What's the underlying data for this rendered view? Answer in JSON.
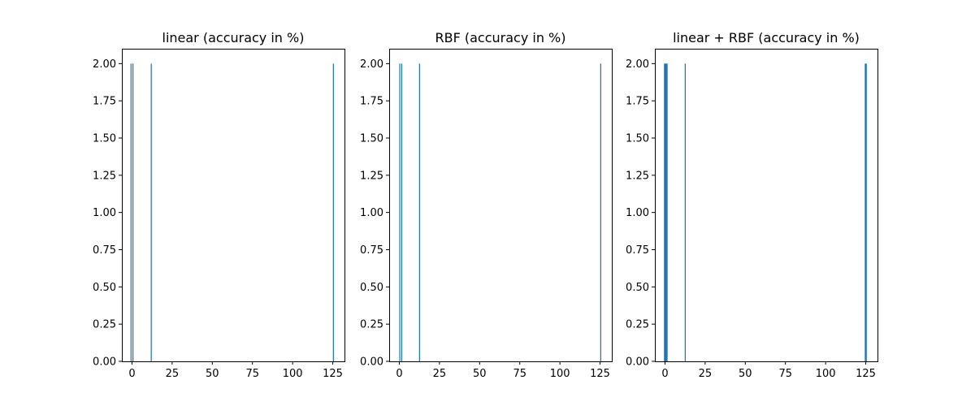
{
  "figure": {
    "background": "#ffffff",
    "bar_color": "#1f77b4"
  },
  "chart_data": [
    {
      "type": "bar",
      "title": "linear (accuracy in %)",
      "xlabel": "",
      "ylabel": "",
      "xlim": [
        -6.3,
        132.3
      ],
      "ylim": [
        0,
        2.1
      ],
      "x_ticks": [
        0,
        25,
        50,
        75,
        100,
        125
      ],
      "y_ticks": [
        "0.00",
        "0.25",
        "0.50",
        "0.75",
        "1.00",
        "1.25",
        "1.50",
        "1.75",
        "2.00"
      ],
      "grid": false,
      "bars": [
        {
          "x": -0.6,
          "width": 0.63,
          "value": 2
        },
        {
          "x": 0.6,
          "width": 0.63,
          "value": 2
        },
        {
          "x": 12.0,
          "width": 0.63,
          "value": 2
        },
        {
          "x": 125.4,
          "width": 0.63,
          "value": 2
        }
      ]
    },
    {
      "type": "bar",
      "title": "RBF (accuracy in %)",
      "xlabel": "",
      "ylabel": "",
      "xlim": [
        -6.3,
        132.3
      ],
      "ylim": [
        0,
        2.1
      ],
      "x_ticks": [
        0,
        25,
        50,
        75,
        100,
        125
      ],
      "y_ticks": [
        "0.00",
        "0.25",
        "0.50",
        "0.75",
        "1.00",
        "1.25",
        "1.50",
        "1.75",
        "2.00"
      ],
      "grid": false,
      "bars": [
        {
          "x": 0.3,
          "width": 0.63,
          "value": 2
        },
        {
          "x": 1.5,
          "width": 0.63,
          "value": 2
        },
        {
          "x": 12.6,
          "width": 0.63,
          "value": 2
        },
        {
          "x": 125.4,
          "width": 0.63,
          "value": 2
        }
      ]
    },
    {
      "type": "bar",
      "title": "linear + RBF (accuracy in %)",
      "xlabel": "",
      "ylabel": "",
      "xlim": [
        -6.3,
        132.3
      ],
      "ylim": [
        0,
        2.1
      ],
      "x_ticks": [
        0,
        25,
        50,
        75,
        100,
        125
      ],
      "y_ticks": [
        "0.00",
        "0.25",
        "0.50",
        "0.75",
        "1.00",
        "1.25",
        "1.50",
        "1.75",
        "2.00"
      ],
      "grid": false,
      "bars": [
        {
          "x": 0.0,
          "width": 1.26,
          "value": 2
        },
        {
          "x": 1.0,
          "width": 1.26,
          "value": 2
        },
        {
          "x": 12.6,
          "width": 0.63,
          "value": 2
        },
        {
          "x": 125.0,
          "width": 1.26,
          "value": 2
        }
      ]
    }
  ]
}
